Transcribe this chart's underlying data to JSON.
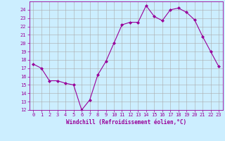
{
  "x": [
    0,
    1,
    2,
    3,
    4,
    5,
    6,
    7,
    8,
    9,
    10,
    11,
    12,
    13,
    14,
    15,
    16,
    17,
    18,
    19,
    20,
    21,
    22,
    23
  ],
  "y": [
    17.5,
    17.0,
    15.5,
    15.5,
    15.2,
    15.0,
    12.0,
    13.2,
    16.2,
    17.8,
    20.0,
    22.2,
    22.5,
    22.5,
    24.5,
    23.2,
    22.7,
    24.0,
    24.2,
    23.7,
    22.8,
    20.8,
    19.0,
    17.2
  ],
  "line_color": "#990099",
  "marker": "D",
  "marker_size": 2,
  "bg_color": "#cceeff",
  "grid_color": "#aaaaaa",
  "xlabel": "Windchill (Refroidissement éolien,°C)",
  "xlabel_color": "#990099",
  "tick_color": "#990099",
  "ylim": [
    12,
    25
  ],
  "xlim": [
    -0.5,
    23.5
  ],
  "yticks": [
    12,
    13,
    14,
    15,
    16,
    17,
    18,
    19,
    20,
    21,
    22,
    23,
    24
  ],
  "xticks": [
    0,
    1,
    2,
    3,
    4,
    5,
    6,
    7,
    8,
    9,
    10,
    11,
    12,
    13,
    14,
    15,
    16,
    17,
    18,
    19,
    20,
    21,
    22,
    23
  ],
  "font_family": "monospace",
  "tick_fontsize": 5.0,
  "xlabel_fontsize": 5.5
}
